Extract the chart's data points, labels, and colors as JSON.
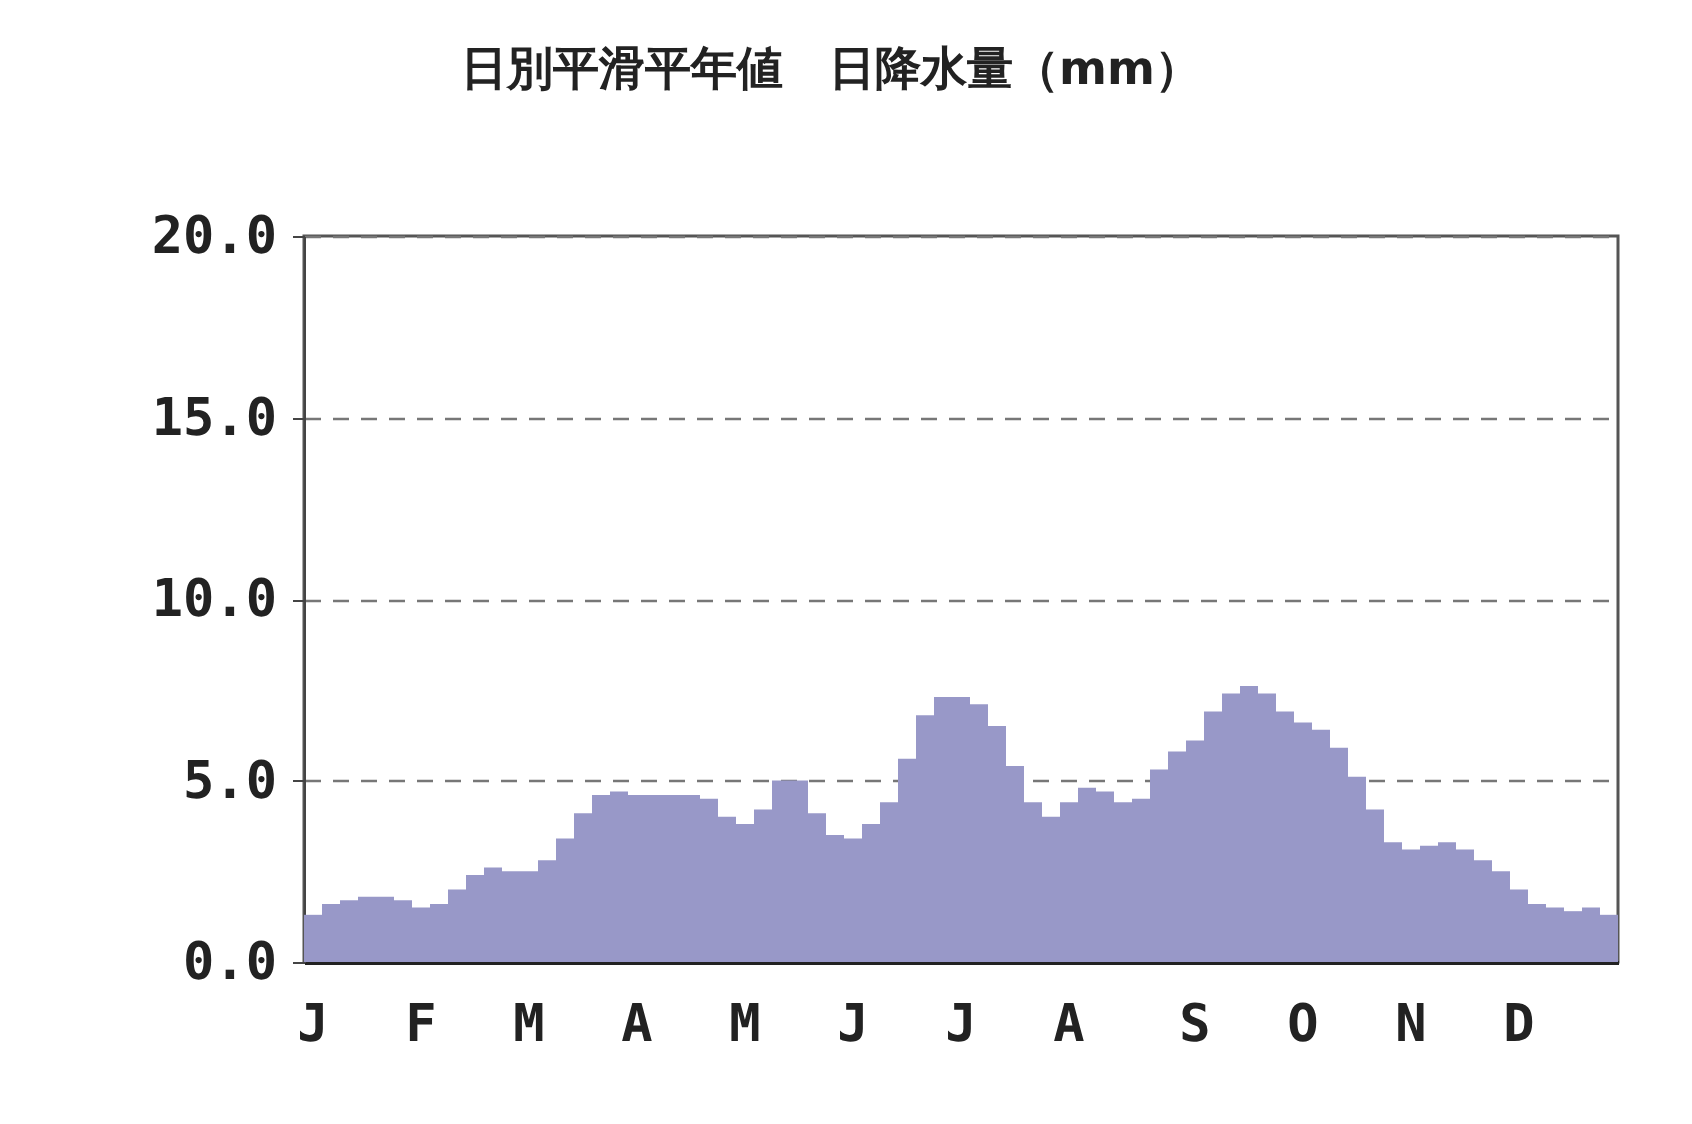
{
  "chart_data": {
    "type": "bar",
    "title": "日別平滑平年値　日降水量（mm）",
    "categories": [
      "J",
      null,
      null,
      null,
      null,
      null,
      "F",
      null,
      null,
      null,
      null,
      null,
      "M",
      null,
      null,
      null,
      null,
      null,
      "A",
      null,
      null,
      null,
      null,
      null,
      "M",
      null,
      null,
      null,
      null,
      null,
      "J",
      null,
      null,
      null,
      null,
      null,
      "J",
      null,
      null,
      null,
      null,
      null,
      "A",
      null,
      null,
      null,
      null,
      null,
      null,
      "S",
      null,
      null,
      null,
      null,
      null,
      "O",
      null,
      null,
      null,
      null,
      null,
      "N",
      null,
      null,
      null,
      null,
      null,
      "D",
      null,
      null,
      null,
      null,
      null
    ],
    "series": [
      {
        "color": "#9898c8",
        "values": [
          1.3,
          1.6,
          1.7,
          1.8,
          1.8,
          1.7,
          1.5,
          1.6,
          2.0,
          2.4,
          2.6,
          2.5,
          2.5,
          2.8,
          3.4,
          4.1,
          4.6,
          4.7,
          4.6,
          4.6,
          4.6,
          4.6,
          4.5,
          4.0,
          3.8,
          4.2,
          5.0,
          5.0,
          4.1,
          3.5,
          3.4,
          3.8,
          4.4,
          5.6,
          6.8,
          7.3,
          7.3,
          7.1,
          6.5,
          5.4,
          4.4,
          4.0,
          4.4,
          4.8,
          4.7,
          4.4,
          4.5,
          5.3,
          5.8,
          6.1,
          6.9,
          7.4,
          7.6,
          7.4,
          6.9,
          6.6,
          6.4,
          5.9,
          5.1,
          4.2,
          3.3,
          3.1,
          3.2,
          3.3,
          3.1,
          2.8,
          2.5,
          2.0,
          1.6,
          1.5,
          1.4,
          1.5,
          1.3
        ]
      }
    ],
    "ylim": [
      0,
      20
    ],
    "yticks": [
      {
        "value": 0,
        "label": "0.0"
      },
      {
        "value": 5,
        "label": "5.0"
      },
      {
        "value": 10,
        "label": "10.0"
      },
      {
        "value": 15,
        "label": "15.0"
      },
      {
        "value": 20,
        "label": "20.0"
      }
    ],
    "grid": "y"
  }
}
